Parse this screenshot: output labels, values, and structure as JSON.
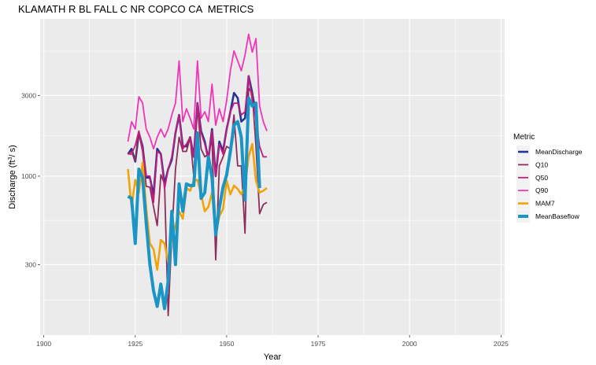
{
  "chart_data": {
    "type": "line",
    "title": "KLAMATH R BL FALL C NR COPCO CA  METRICS",
    "xlabel": "Year",
    "ylabel_prefix": "Discharge (ft",
    "ylabel_sup": "3",
    "ylabel_suffix": "/ s)",
    "y_scale": "log",
    "xlim": [
      1899,
      2026
    ],
    "ylim": [
      115,
      8500
    ],
    "x_ticks": [
      1900,
      1925,
      1950,
      1975,
      2000,
      2025
    ],
    "y_ticks": [
      300,
      1000,
      3000
    ],
    "grid": true,
    "background": "#ebebeb",
    "legend": {
      "title": "Metric",
      "position": "right"
    },
    "x": [
      1923,
      1924,
      1925,
      1926,
      1927,
      1928,
      1929,
      1930,
      1931,
      1932,
      1933,
      1934,
      1935,
      1936,
      1937,
      1938,
      1939,
      1940,
      1941,
      1942,
      1943,
      1944,
      1945,
      1946,
      1947,
      1948,
      1949,
      1950,
      1951,
      1952,
      1953,
      1954,
      1955,
      1956,
      1957,
      1958,
      1959,
      1960,
      1961
    ],
    "series": [
      {
        "name": "MeanDischarge",
        "color": "#253494",
        "width": 2.6,
        "values": [
          1350,
          1450,
          1220,
          1800,
          1500,
          980,
          980,
          770,
          1450,
          1350,
          900,
          1100,
          1250,
          1800,
          2300,
          1500,
          1500,
          1700,
          1300,
          2700,
          1850,
          1600,
          1250,
          1900,
          1000,
          1600,
          1400,
          1900,
          2400,
          3100,
          2900,
          2100,
          2200,
          3900,
          3100,
          2300,
          null,
          null,
          null
        ]
      },
      {
        "name": "Q10",
        "color": "#8c2d5a",
        "width": 1.8,
        "values": [
          1350,
          1400,
          1230,
          1800,
          1400,
          870,
          860,
          660,
          510,
          1020,
          900,
          150,
          450,
          1100,
          1700,
          1400,
          1400,
          1700,
          1000,
          2600,
          1450,
          1300,
          1350,
          1650,
          320,
          1150,
          1300,
          1500,
          1450,
          2300,
          1150,
          1150,
          460,
          3300,
          3100,
          1500,
          600,
          680,
          700
        ]
      },
      {
        "name": "Q50",
        "color": "#c51b7d",
        "width": 1.8,
        "values": [
          1350,
          1350,
          1520,
          1850,
          1450,
          1000,
          1000,
          700,
          1400,
          1350,
          840,
          1100,
          1300,
          1800,
          2300,
          1450,
          1550,
          1700,
          1300,
          2700,
          1800,
          1550,
          1250,
          1850,
          1000,
          1550,
          1350,
          1900,
          2400,
          2700,
          2700,
          2300,
          2400,
          3900,
          2800,
          2200,
          1500,
          1300,
          1300
        ]
      },
      {
        "name": "Q90",
        "color": "#f035b8",
        "width": 1.8,
        "values": [
          1600,
          2100,
          1900,
          2950,
          2700,
          1900,
          1700,
          1450,
          1700,
          1900,
          1700,
          1900,
          2300,
          2700,
          4800,
          2100,
          2500,
          2200,
          1900,
          4800,
          2200,
          2400,
          2100,
          3500,
          2000,
          2500,
          2100,
          2800,
          4200,
          5500,
          4800,
          4200,
          5200,
          6900,
          5400,
          6500,
          2600,
          2100,
          1850
        ]
      },
      {
        "name": "MAM7",
        "color": "#f0a30a",
        "width": 2.6,
        "values": [
          1100,
          660,
          950,
          800,
          1200,
          650,
          400,
          370,
          280,
          420,
          400,
          310,
          430,
          510,
          620,
          560,
          850,
          820,
          940,
          950,
          780,
          620,
          660,
          800,
          450,
          580,
          640,
          940,
          780,
          880,
          840,
          780,
          880,
          1300,
          1550,
          940,
          800,
          820,
          850
        ]
      },
      {
        "name": "MeanBaseflow",
        "color": "#1a95c5",
        "width": 4.0,
        "values": [
          760,
          740,
          400,
          1100,
          980,
          530,
          300,
          210,
          170,
          230,
          165,
          240,
          620,
          300,
          900,
          620,
          900,
          880,
          880,
          1800,
          740,
          800,
          1300,
          980,
          450,
          650,
          860,
          1020,
          1400,
          2000,
          2100,
          1700,
          720,
          2900,
          2600,
          2700,
          850,
          null,
          null
        ]
      }
    ]
  }
}
